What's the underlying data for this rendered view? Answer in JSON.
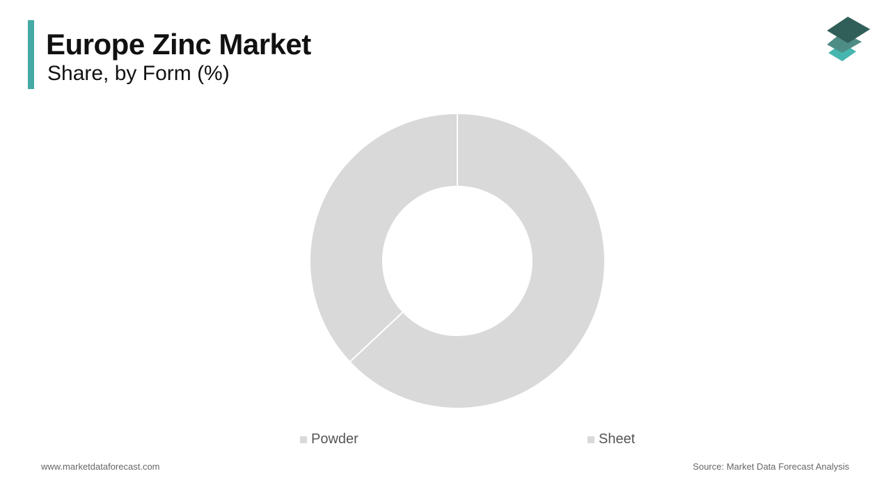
{
  "header": {
    "title": "Europe Zinc Market",
    "subtitle": "Share, by Form (%)"
  },
  "logo": {
    "icon": "stacked-layers-logo",
    "colors": [
      "#2f5f58",
      "#4e8d86",
      "#45b5b0"
    ]
  },
  "chart_data": {
    "type": "pie",
    "donut": true,
    "categories": [
      "Powder",
      "Sheet"
    ],
    "values": [
      63,
      37
    ],
    "colors": [
      "#d9d9d9",
      "#d9d9d9"
    ],
    "legend_position": "bottom"
  },
  "footer": {
    "website": "www.marketdataforecast.com",
    "source": "Source: Market Data Forecast Analysis"
  }
}
